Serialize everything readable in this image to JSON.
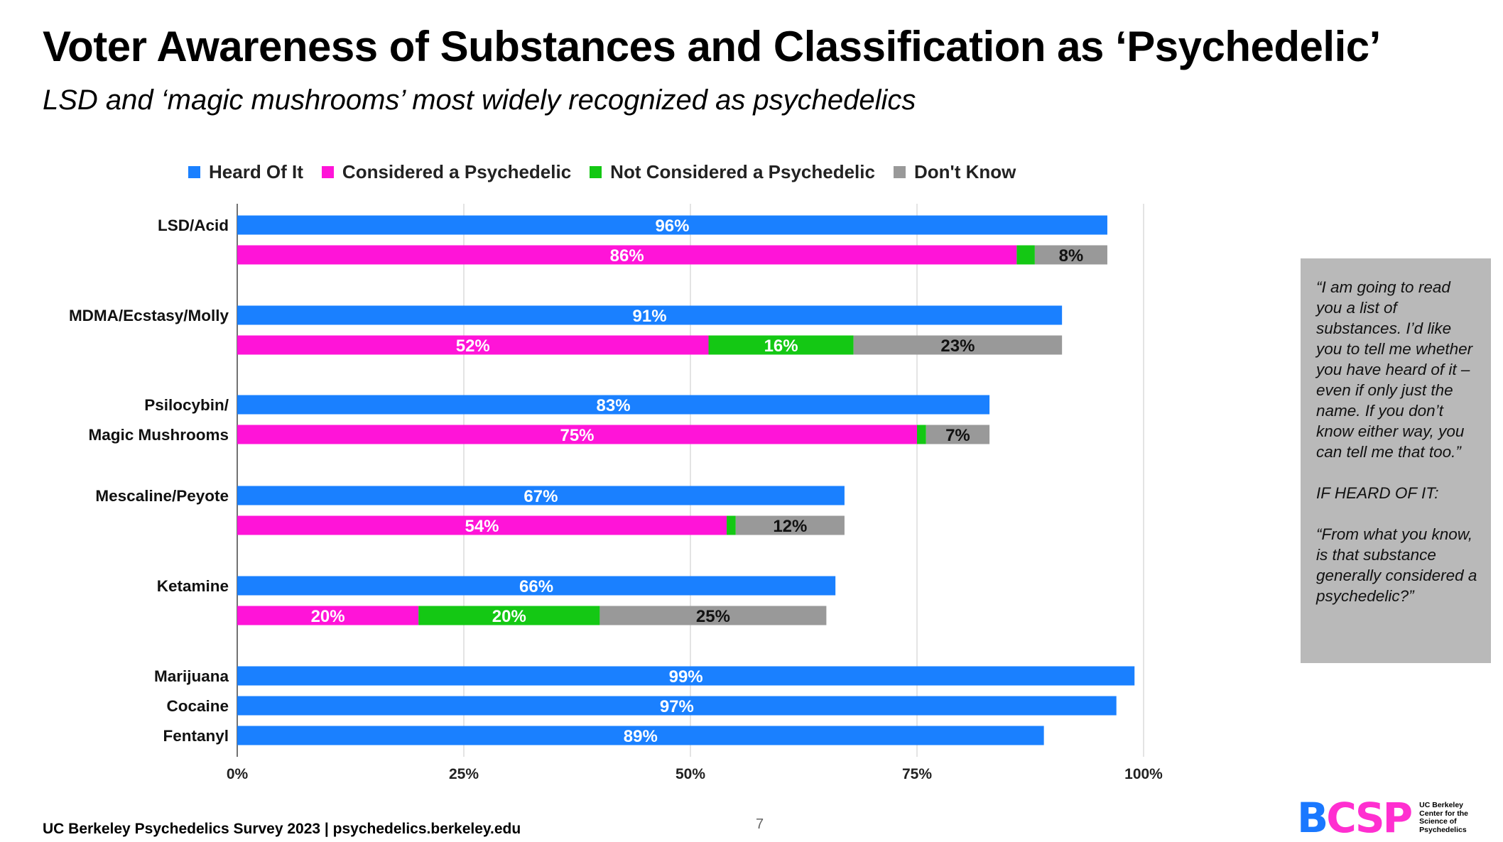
{
  "title": "Voter Awareness of Substances and Classification as ‘Psychedelic’",
  "subtitle": "LSD and ‘magic mushrooms’ most widely recognized as psychedelics",
  "legend": [
    {
      "label": "Heard Of It",
      "color": "#1a80ff"
    },
    {
      "label": "Considered a Psychedelic",
      "color": "#ff14d8"
    },
    {
      "label": "Not Considered a Psychedelic",
      "color": "#14c814"
    },
    {
      "label": "Don't Know",
      "color": "#999999"
    }
  ],
  "chart_data": {
    "type": "bar",
    "orientation": "horizontal",
    "stacked": true,
    "xlim": [
      0,
      100
    ],
    "x_ticks": [
      "0%",
      "25%",
      "50%",
      "75%",
      "100%"
    ],
    "grid": true,
    "legend_position": "top",
    "rows": [
      {
        "label": "LSD/Acid",
        "kind": "heard",
        "heard": 96
      },
      {
        "label": "",
        "kind": "classification",
        "considered": 86,
        "not_considered": 2,
        "dont_know": 8
      },
      {
        "label": "MDMA/Ecstasy/Molly",
        "kind": "heard",
        "heard": 91
      },
      {
        "label": "",
        "kind": "classification",
        "considered": 52,
        "not_considered": 16,
        "dont_know": 23
      },
      {
        "label": "Psilocybin/",
        "kind": "heard",
        "heard": 83
      },
      {
        "label": "Magic Mushrooms",
        "kind": "classification",
        "considered": 75,
        "not_considered": 1,
        "dont_know": 7
      },
      {
        "label": "Mescaline/Peyote",
        "kind": "heard",
        "heard": 67
      },
      {
        "label": "",
        "kind": "classification",
        "considered": 54,
        "not_considered": 1,
        "dont_know": 12
      },
      {
        "label": "Ketamine",
        "kind": "heard",
        "heard": 66
      },
      {
        "label": "",
        "kind": "classification",
        "considered": 20,
        "not_considered": 20,
        "dont_know": 25
      },
      {
        "label": "Marijuana",
        "kind": "heard",
        "heard": 99
      },
      {
        "label": "Cocaine",
        "kind": "heard",
        "heard": 97
      },
      {
        "label": "Fentanyl",
        "kind": "heard",
        "heard": 89
      }
    ]
  },
  "note": {
    "paragraphs": [
      "“I am going to read you a list of substances. I’d like you to tell me whether you have heard of it – even if only just the name. If you don’t know either way, you can tell me that too.”",
      "IF HEARD OF IT:",
      "“From what you know, is that substance generally considered a psychedelic?”"
    ]
  },
  "footer": {
    "source": "UC Berkeley Psychedelics Survey 2023 | psychedelics.berkeley.edu",
    "page_number": "7"
  },
  "logo": {
    "mark": "BCSP",
    "text": "UC Berkeley\nCenter for the\nScience of\nPsychedelics"
  }
}
